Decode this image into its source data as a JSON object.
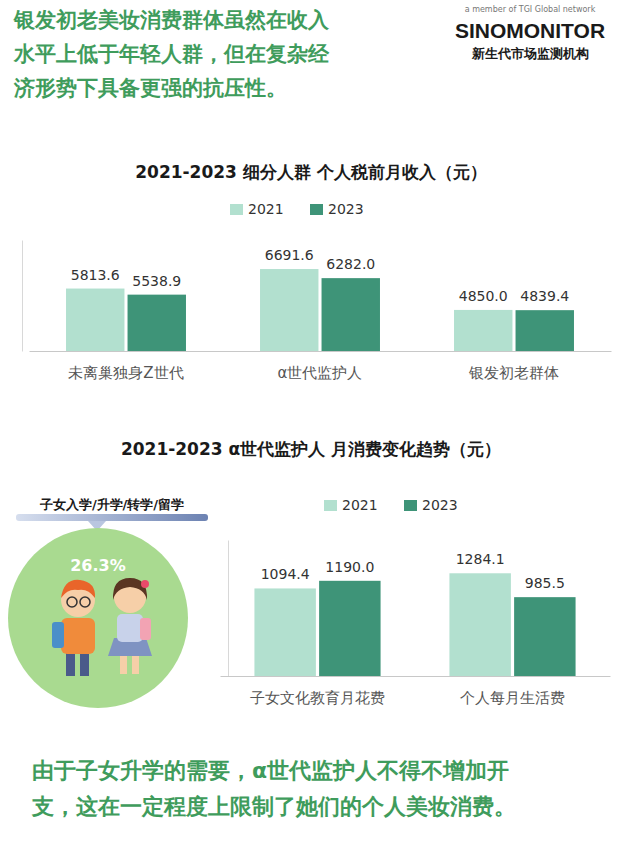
{
  "logo": {
    "tagline": "a member of TGI Global network",
    "brand": "SINOMONITOR",
    "brand_cn": "新生代市场监测机构"
  },
  "header": {
    "lines": [
      "银发初老美妆消费群体虽然在收入",
      "水平上低于年轻人群，但在复杂经",
      "济形势下具备更强的抗压性。"
    ]
  },
  "chart_data": [
    {
      "type": "bar",
      "title": "2021-2023  细分人群  个人税前月收入（元）",
      "categories": [
        "未离巢独身Z世代",
        "α世代监护人",
        "银发初老群体"
      ],
      "series": [
        {
          "name": "2021",
          "color": "#b2e0cf",
          "values": [
            5813.6,
            6691.6,
            4850.0
          ],
          "value_labels": [
            "5813.6",
            "6691.6",
            "4850.0"
          ]
        },
        {
          "name": "2023",
          "color": "#3e9478",
          "values": [
            5538.9,
            6282.0,
            4839.4
          ],
          "value_labels": [
            "5538.9",
            "6282.0",
            "4839.4"
          ]
        }
      ],
      "ylim": [
        3000,
        8000
      ],
      "legend": "top",
      "data_labels": true,
      "tick_labels": "x"
    },
    {
      "type": "bar",
      "title": "2021-2023  α世代监护人  月消费变化趋势（元）",
      "categories": [
        "子女文化教育月花费",
        "个人每月生活费"
      ],
      "series": [
        {
          "name": "2021",
          "color": "#b2e0cf",
          "values": [
            1094.4,
            1284.1
          ],
          "value_labels": [
            "1094.4",
            "1284.1"
          ]
        },
        {
          "name": "2023",
          "color": "#3e9478",
          "values": [
            1190.0,
            985.5
          ],
          "value_labels": [
            "1190.0",
            "985.5"
          ]
        }
      ],
      "ylim": [
        0,
        1700
      ],
      "legend": "top",
      "data_labels": true,
      "tick_labels": "x"
    }
  ],
  "badge": {
    "title": "子女入学/升学/转学/留学",
    "share_label": "26.3%"
  },
  "footer": {
    "lines": [
      "由于子女升学的需要，α世代监护人不得不增加开",
      "支，这在一定程度上限制了她们的个人美妆消费。"
    ]
  }
}
